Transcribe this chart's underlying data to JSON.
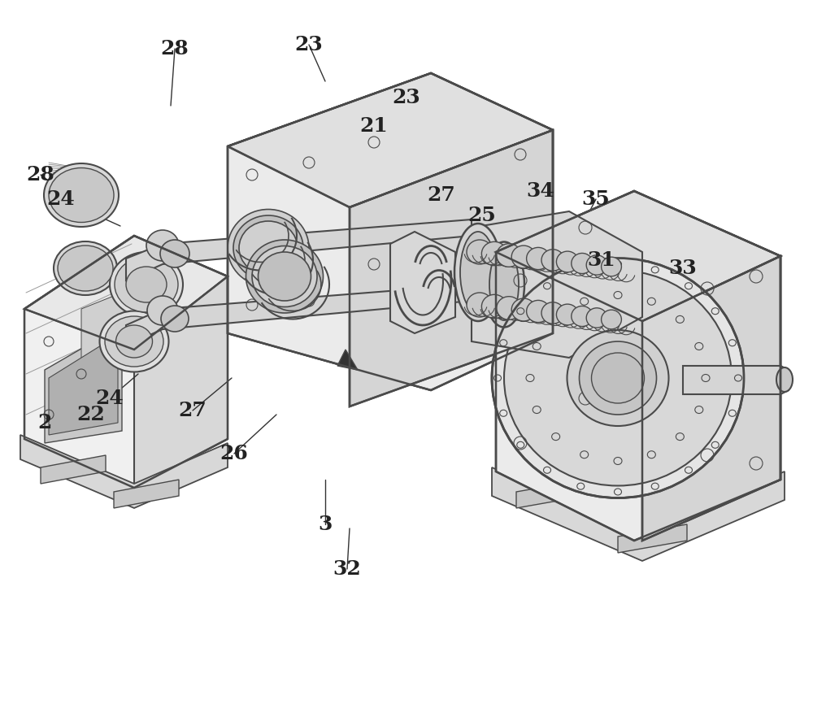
{
  "title": "",
  "background_color": "#ffffff",
  "line_color": "#4a4a4a",
  "line_width": 1.2,
  "figsize": [
    10.0,
    8.82
  ],
  "dpi": 100,
  "leader_data": [
    [
      "28",
      215,
      60,
      210,
      130
    ],
    [
      "23",
      380,
      55,
      400,
      100
    ],
    [
      "23",
      500,
      120,
      480,
      155
    ],
    [
      "21",
      460,
      155,
      455,
      185
    ],
    [
      "27",
      543,
      240,
      535,
      270
    ],
    [
      "25",
      593,
      265,
      578,
      300
    ],
    [
      "34",
      665,
      235,
      655,
      265
    ],
    [
      "35",
      733,
      245,
      720,
      270
    ],
    [
      "31",
      740,
      320,
      730,
      370
    ],
    [
      "33",
      840,
      330,
      825,
      375
    ],
    [
      "28",
      50,
      215,
      120,
      268
    ],
    [
      "24",
      75,
      245,
      148,
      278
    ],
    [
      "2",
      55,
      520,
      85,
      455
    ],
    [
      "22",
      112,
      510,
      150,
      455
    ],
    [
      "24",
      135,
      490,
      170,
      460
    ],
    [
      "27",
      237,
      505,
      285,
      465
    ],
    [
      "26",
      288,
      558,
      340,
      510
    ],
    [
      "3",
      400,
      645,
      400,
      590
    ],
    [
      "32",
      427,
      700,
      430,
      650
    ]
  ]
}
